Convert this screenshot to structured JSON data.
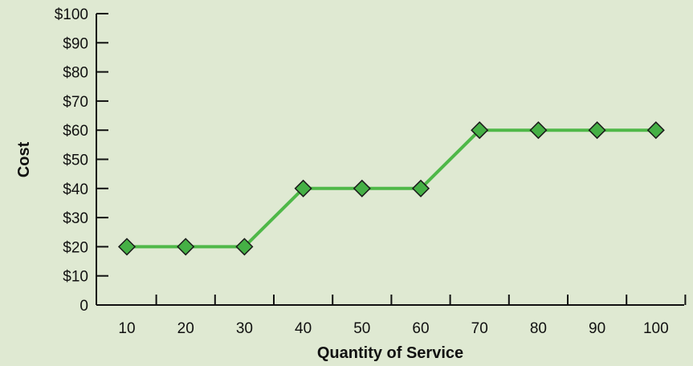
{
  "chart_data": {
    "type": "line",
    "x": [
      10,
      20,
      30,
      40,
      50,
      60,
      70,
      80,
      90,
      100
    ],
    "series": [
      {
        "values": [
          20,
          20,
          20,
          40,
          40,
          40,
          60,
          60,
          60,
          60
        ]
      }
    ],
    "xlabel": "Quantity of Service",
    "ylabel": "Cost",
    "xticks": [
      "10",
      "20",
      "30",
      "40",
      "50",
      "60",
      "70",
      "80",
      "90",
      "100"
    ],
    "yticks": [
      "0",
      "$10",
      "$20",
      "$30",
      "$40",
      "$50",
      "$60",
      "$70",
      "$80",
      "$90",
      "$100"
    ],
    "ylim": [
      0,
      100
    ],
    "grid": false,
    "line_color": "#4fb848",
    "marker": "diamond",
    "marker_fill": "#45b045",
    "marker_stroke": "#1a1a1a",
    "background": "#dfe9d2"
  }
}
